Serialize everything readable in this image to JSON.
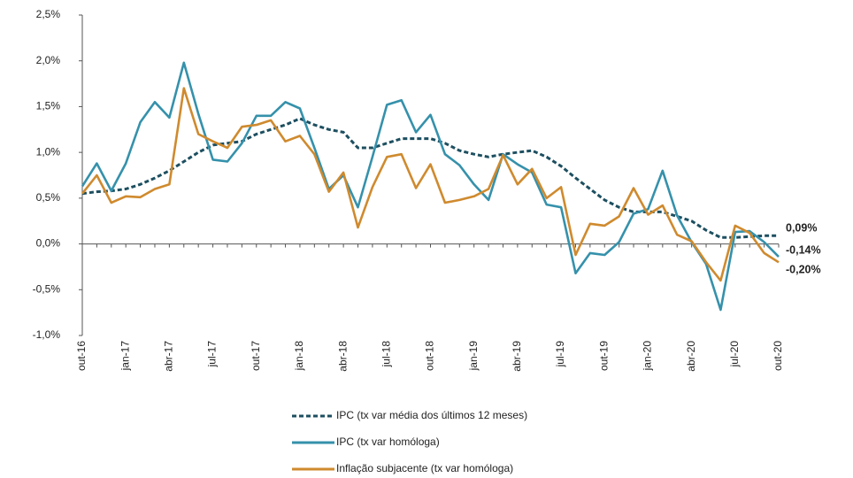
{
  "chart_data": {
    "type": "line",
    "categories": [
      "out-16",
      null,
      null,
      "jan-17",
      null,
      null,
      "abr-17",
      null,
      null,
      "jul-17",
      null,
      null,
      "out-17",
      null,
      null,
      "jan-18",
      null,
      null,
      "abr-18",
      null,
      null,
      "jul-18",
      null,
      null,
      "out-18",
      null,
      null,
      "jan-19",
      null,
      null,
      "abr-19",
      null,
      null,
      "jul-19",
      null,
      null,
      "out-19",
      null,
      null,
      "jan-20",
      null,
      null,
      "abr-20",
      null,
      null,
      "jul-20",
      null,
      null,
      "out-20"
    ],
    "ylim": [
      -1.0,
      2.5
    ],
    "yticks": [
      {
        "value": -1.0,
        "label": "-1,0%"
      },
      {
        "value": -0.5,
        "label": "-0,5%"
      },
      {
        "value": 0.0,
        "label": "0,0%"
      },
      {
        "value": 0.5,
        "label": "0,5%"
      },
      {
        "value": 1.0,
        "label": "1,0%"
      },
      {
        "value": 1.5,
        "label": "1,5%"
      },
      {
        "value": 2.0,
        "label": "2,0%"
      },
      {
        "value": 2.5,
        "label": "2,5%"
      }
    ],
    "grid": false,
    "legend": "bottom",
    "series": [
      {
        "name": "IPC (tx var média dos últimos 12 meses)",
        "color": "#1d4f60",
        "dash": true,
        "end_label": "0,09%",
        "values": [
          0.55,
          0.57,
          0.58,
          0.6,
          0.65,
          0.72,
          0.8,
          0.9,
          1.0,
          1.08,
          1.1,
          1.12,
          1.2,
          1.25,
          1.3,
          1.37,
          1.3,
          1.25,
          1.22,
          1.05,
          1.05,
          1.1,
          1.15,
          1.15,
          1.15,
          1.1,
          1.02,
          0.98,
          0.95,
          0.98,
          1.0,
          1.02,
          0.95,
          0.85,
          0.72,
          0.6,
          0.48,
          0.4,
          0.35,
          0.35,
          0.35,
          0.3,
          0.25,
          0.15,
          0.07,
          0.07,
          0.08,
          0.09,
          0.09
        ]
      },
      {
        "name": "IPC (tx var homóloga)",
        "color": "#3591ab",
        "dash": false,
        "end_label": "-0,14%",
        "values": [
          0.63,
          0.88,
          0.58,
          0.88,
          1.33,
          1.55,
          1.38,
          1.98,
          1.42,
          0.92,
          0.9,
          1.1,
          1.4,
          1.4,
          1.55,
          1.48,
          1.05,
          0.6,
          0.75,
          0.4,
          0.95,
          1.52,
          1.57,
          1.22,
          1.41,
          0.98,
          0.86,
          0.65,
          0.48,
          0.98,
          0.87,
          0.78,
          0.43,
          0.4,
          -0.32,
          -0.1,
          -0.12,
          0.02,
          0.33,
          0.38,
          0.8,
          0.31,
          0.02,
          -0.22,
          -0.72,
          0.13,
          0.14,
          0.02,
          -0.14
        ]
      },
      {
        "name": "Inflação subjacente (tx var homóloga)",
        "color": "#cf8a2e",
        "dash": false,
        "end_label": "-0,20%",
        "values": [
          0.55,
          0.75,
          0.45,
          0.52,
          0.51,
          0.6,
          0.65,
          1.7,
          1.2,
          1.12,
          1.05,
          1.28,
          1.3,
          1.35,
          1.12,
          1.18,
          0.98,
          0.57,
          0.78,
          0.18,
          0.62,
          0.95,
          0.98,
          0.61,
          0.87,
          0.45,
          0.48,
          0.52,
          0.6,
          0.97,
          0.65,
          0.82,
          0.5,
          0.62,
          -0.12,
          0.22,
          0.2,
          0.3,
          0.61,
          0.32,
          0.42,
          0.1,
          0.03,
          -0.2,
          -0.4,
          0.2,
          0.12,
          -0.1,
          -0.2
        ]
      }
    ]
  }
}
